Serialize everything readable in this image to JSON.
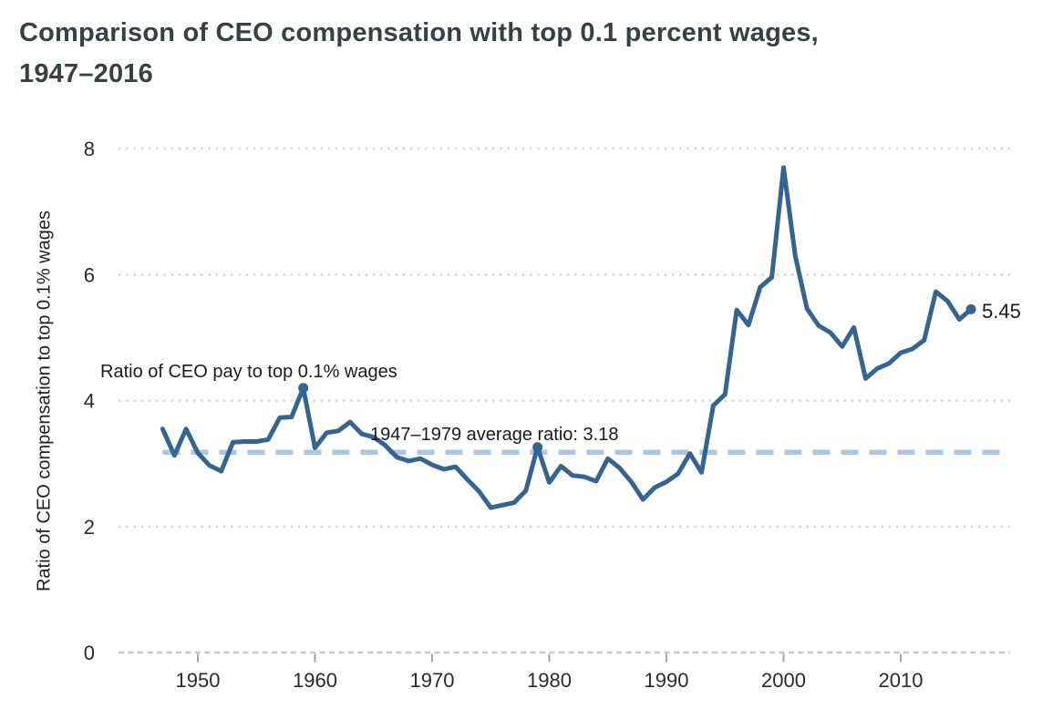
{
  "title": {
    "line1": "Comparison of CEO compensation with top 0.1 percent wages,",
    "line2": "1947–2016"
  },
  "annotations": {
    "series_label": "Ratio of CEO pay to top 0.1% wages",
    "average_label": "1947–1979 average ratio: 3.18",
    "end_value_label": "5.45"
  },
  "colors": {
    "line": "#35648e",
    "average_dash": "#a9c6e6",
    "grid": "#dadada",
    "baseline": "#c9c9c9",
    "tick": "#9c9c9c",
    "title_text": "#3b3e42",
    "body_text": "#1b1b1b"
  },
  "chart_data": {
    "type": "line",
    "title": "Comparison of CEO compensation with top 0.1 percent wages, 1947–2016",
    "xlabel": "",
    "ylabel": "Ratio of CEO compensation to top 0.1% wages",
    "ylim": [
      0,
      8
    ],
    "yticks": [
      0,
      2,
      4,
      6,
      8
    ],
    "xticks": [
      1950,
      1960,
      1970,
      1980,
      1990,
      2000,
      2010
    ],
    "grid": "horizontal dotted",
    "legend": "none",
    "series_name": "Ratio of CEO pay to top 0.1% wages",
    "x": [
      1947,
      1948,
      1949,
      1950,
      1951,
      1952,
      1953,
      1954,
      1955,
      1956,
      1957,
      1958,
      1959,
      1960,
      1961,
      1962,
      1963,
      1964,
      1965,
      1966,
      1967,
      1968,
      1969,
      1970,
      1971,
      1972,
      1973,
      1974,
      1975,
      1976,
      1977,
      1978,
      1979,
      1980,
      1981,
      1982,
      1983,
      1984,
      1985,
      1986,
      1987,
      1988,
      1989,
      1990,
      1991,
      1992,
      1993,
      1994,
      1995,
      1996,
      1997,
      1998,
      1999,
      2000,
      2001,
      2002,
      2003,
      2004,
      2005,
      2006,
      2007,
      2008,
      2009,
      2010,
      2011,
      2012,
      2013,
      2014,
      2015,
      2016
    ],
    "values": [
      3.55,
      3.13,
      3.55,
      3.17,
      2.97,
      2.88,
      3.34,
      3.35,
      3.35,
      3.38,
      3.73,
      3.74,
      4.2,
      3.25,
      3.49,
      3.52,
      3.66,
      3.47,
      3.42,
      3.29,
      3.1,
      3.04,
      3.08,
      2.98,
      2.91,
      2.95,
      2.75,
      2.56,
      2.3,
      2.34,
      2.38,
      2.57,
      3.26,
      2.7,
      2.96,
      2.81,
      2.79,
      2.72,
      3.08,
      2.93,
      2.71,
      2.43,
      2.62,
      2.71,
      2.84,
      3.16,
      2.86,
      3.92,
      4.1,
      5.44,
      5.2,
      5.8,
      5.96,
      7.7,
      6.3,
      5.46,
      5.19,
      5.08,
      4.86,
      5.16,
      4.35,
      4.51,
      4.59,
      4.76,
      4.82,
      4.96,
      5.73,
      5.58,
      5.29,
      5.45
    ],
    "average_line": {
      "value": 3.18,
      "label": "1947–1979 average ratio: 3.18",
      "period": "1947–1979",
      "style": "dashed"
    },
    "marked_points": [
      {
        "year": 1959,
        "value": 4.2
      },
      {
        "year": 1979,
        "value": 3.26
      },
      {
        "year": 2016,
        "value": 5.45,
        "label": "5.45"
      }
    ]
  }
}
